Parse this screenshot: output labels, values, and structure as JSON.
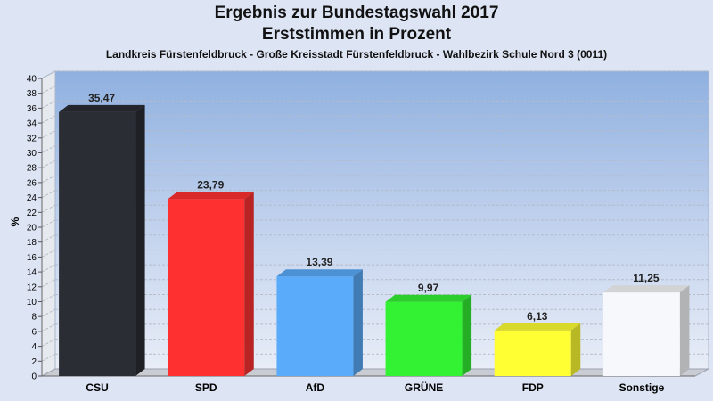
{
  "title": "Ergebnis zur Bundestagswahl 2017",
  "subtitle": "Erststimmen in Prozent",
  "subsubtitle": "Landkreis Fürstenfeldbruck - Große Kreisstadt Fürstenfeldbruck - Wahlbezirk Schule Nord 3 (0011)",
  "chart_data": {
    "type": "bar",
    "categories": [
      "CSU",
      "SPD",
      "AfD",
      "GRÜNE",
      "FDP",
      "Sonstige"
    ],
    "values": [
      35.47,
      23.79,
      13.39,
      9.97,
      6.13,
      11.25
    ],
    "value_labels": [
      "35,47",
      "23,79",
      "13,39",
      "9,97",
      "6,13",
      "11,25"
    ],
    "colors": [
      "#2a2d33",
      "#ff3030",
      "#5aabfa",
      "#33f233",
      "#ffff33",
      "#f7f8fb"
    ],
    "ylabel": "%",
    "ylim": [
      0,
      40
    ],
    "yticks": [
      0,
      2,
      4,
      6,
      8,
      10,
      12,
      14,
      16,
      18,
      20,
      22,
      24,
      26,
      28,
      30,
      32,
      34,
      36,
      38,
      40
    ],
    "grid": true
  }
}
